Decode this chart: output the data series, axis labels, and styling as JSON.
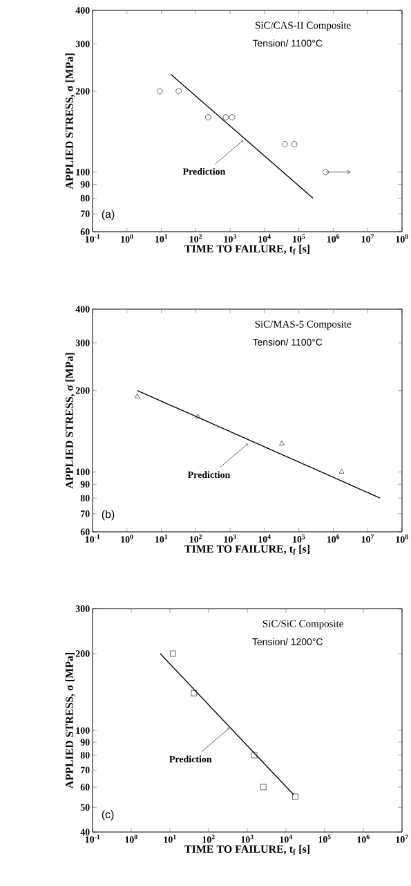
{
  "chart_data": [
    {
      "type": "scatter",
      "title": "SiC/CAS-II Composite",
      "subtitle": "Tension/ 1100°C",
      "xlabel": "TIME TO FAILURE, t$_{f}$ [s]",
      "ylabel": "APPLIED STRESS, σ [MPa]",
      "log": "xy",
      "xlim": [
        0.1,
        100000000
      ],
      "ylim": [
        60,
        400
      ],
      "xticks": [
        {
          "value": 0.1,
          "label": "10$^{-1}$"
        },
        {
          "value": 1,
          "label": "10$^{0}$"
        },
        {
          "value": 10,
          "label": "10$^{1}$"
        },
        {
          "value": 100,
          "label": "10$^{2}$"
        },
        {
          "value": 1000,
          "label": "10$^{3}$"
        },
        {
          "value": 10000,
          "label": "10$^{4}$"
        },
        {
          "value": 100000,
          "label": "10$^{5}$"
        },
        {
          "value": 1000000,
          "label": "10$^{6}$"
        },
        {
          "value": 10000000,
          "label": "10$^{7}$"
        },
        {
          "value": 100000000,
          "label": "10$^{8}$"
        }
      ],
      "yticks": [
        60,
        70,
        80,
        90,
        100,
        200,
        300,
        400
      ],
      "annotations": [
        "(a)",
        {
          "text": "Prediction",
          "x": 2340,
          "y": 131
        }
      ],
      "series": [
        {
          "type": "scatter",
          "marker": "circle",
          "color": "#000000",
          "x": [
            9,
            32,
            230,
            750,
            1150,
            39000,
            74000,
            600000
          ],
          "values": [
            200,
            200,
            160,
            160,
            160,
            127,
            127,
            100
          ],
          "xerrors": [
            null,
            null,
            null,
            null,
            null,
            null,
            null,
            [
              600000,
              3100000
            ]
          ]
        },
        {
          "type": "line",
          "marker": "none",
          "line_style": "solid",
          "color": "#000000",
          "x": [
            19,
            257000
          ],
          "values": [
            231,
            80
          ]
        }
      ]
    },
    {
      "type": "scatter",
      "title": "SiC/MAS-5 Composite",
      "subtitle": "Tension/ 1100°C",
      "xlabel": "TIME TO FAILURE, t$_{f}$ [s]",
      "ylabel": "APPLIED STRESS, σ [MPa]",
      "log": "xy",
      "xlim": [
        0.1,
        100000000
      ],
      "ylim": [
        60,
        400
      ],
      "xticks": [
        {
          "value": 0.1,
          "label": "10$^{-1}$"
        },
        {
          "value": 1,
          "label": "10$^{0}$"
        },
        {
          "value": 10,
          "label": "10$^{1}$"
        },
        {
          "value": 100,
          "label": "10$^{2}$"
        },
        {
          "value": 1000,
          "label": "10$^{3}$"
        },
        {
          "value": 10000,
          "label": "10$^{4}$"
        },
        {
          "value": 100000,
          "label": "10$^{5}$"
        },
        {
          "value": 1000000,
          "label": "10$^{6}$"
        },
        {
          "value": 10000000,
          "label": "10$^{7}$"
        },
        {
          "value": 100000000,
          "label": "10$^{8}$"
        }
      ],
      "yticks": [
        60,
        70,
        80,
        90,
        100,
        200,
        300,
        400
      ],
      "annotations": [
        "(b)",
        {
          "text": "Prediction",
          "x": 3240,
          "y": 127
        }
      ],
      "series": [
        {
          "type": "scatter",
          "marker": "triangle",
          "color": "#000000",
          "x": [
            2,
            115,
            32000,
            1750000
          ],
          "values": [
            190,
            160,
            127,
            100
          ]
        },
        {
          "type": "line",
          "marker": "none",
          "line_style": "solid",
          "color": "#000000",
          "x": [
            2,
            23000000
          ],
          "values": [
            200,
            80
          ]
        }
      ]
    },
    {
      "type": "scatter",
      "title": "SiC/SiC Composite",
      "subtitle": "Tension/ 1200°C",
      "xlabel": "TIME TO FAILURE, t$_{f}$ [s]",
      "ylabel": "APPLIED STRESS, σ [MPa]",
      "log": "xy",
      "xlim": [
        0.1,
        10000000
      ],
      "ylim": [
        40,
        300
      ],
      "xticks": [
        {
          "value": 0.1,
          "label": "10$^{-1}$"
        },
        {
          "value": 1,
          "label": "10$^{0}$"
        },
        {
          "value": 10,
          "label": "10$^{1}$"
        },
        {
          "value": 100,
          "label": "10$^{2}$"
        },
        {
          "value": 1000,
          "label": "10$^{3}$"
        },
        {
          "value": 10000,
          "label": "10$^{4}$"
        },
        {
          "value": 100000,
          "label": "10$^{5}$"
        },
        {
          "value": 1000000,
          "label": "10$^{6}$"
        },
        {
          "value": 10000000,
          "label": "10$^{7}$"
        }
      ],
      "yticks": [
        40,
        50,
        60,
        70,
        80,
        90,
        100,
        200,
        300
      ],
      "annotations": [
        "(c)",
        {
          "text": "Prediction",
          "x": 340,
          "y": 102
        }
      ],
      "series": [
        {
          "type": "scatter",
          "marker": "square",
          "color": "#000000",
          "x": [
            12,
            42,
            1520,
            2600,
            17500
          ],
          "values": [
            200,
            140,
            80,
            60,
            55
          ]
        },
        {
          "type": "line",
          "marker": "none",
          "line_style": "solid",
          "color": "#000000",
          "x": [
            5.6,
            15800
          ],
          "values": [
            200,
            56
          ]
        }
      ]
    }
  ]
}
